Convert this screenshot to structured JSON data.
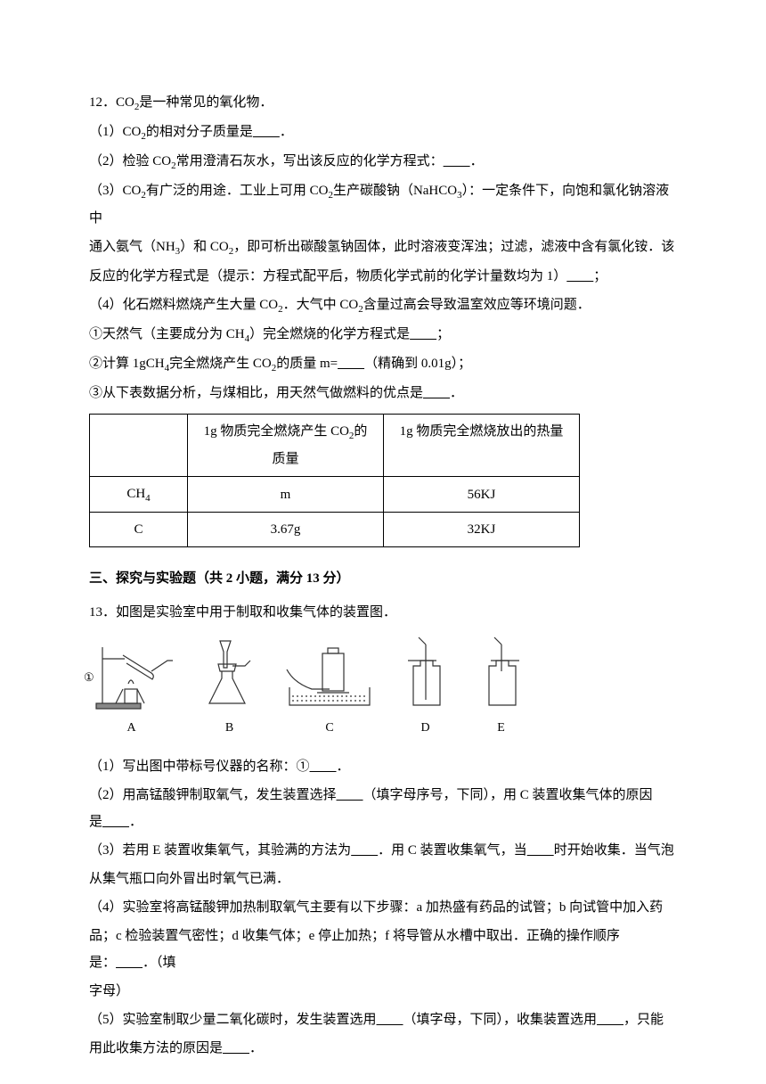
{
  "q12": {
    "num": "12．",
    "intro": "CO₂是一种常见的氧化物．",
    "p1": "（1）CO₂的相对分子质量是____．",
    "p2": "（2）检验 CO₂常用澄清石灰水，写出该反应的化学方程式：____．",
    "p3a": "（3）CO₂有广泛的用途．工业上可用 CO₂生产碳酸钠（NaHCO₃）：一定条件下，向饱和氯化钠溶液中",
    "p3b": "通入氨气（NH₃）和 CO₂，即可析出碳酸氢钠固体，此时溶液变浑浊；过滤，滤液中含有氯化铵．该",
    "p3c": "反应的化学方程式是（提示：方程式配平后，物质化学式前的化学计量数均为 1）____；",
    "p4": "（4）化石燃料燃烧产生大量 CO₂．大气中 CO₂含量过高会导致温室效应等环境问题．",
    "p4_1": "①天然气（主要成分为 CH₄）完全燃烧的化学方程式是____；",
    "p4_2": "②计算 1gCH₄完全燃烧产生 CO₂的质量 m=____（精确到 0.01g）；",
    "p4_3": "③从下表数据分析，与煤相比，用天然气做燃料的优点是____．"
  },
  "table": {
    "col_widths": {
      "c1": 110,
      "c2": 220,
      "c3": 220
    },
    "header": {
      "c1": "",
      "c2_l1": "1g 物质完全燃烧产生 CO₂的",
      "c2_l2": "质量",
      "c3": "1g 物质完全燃烧放出的热量"
    },
    "row1": {
      "c1": "CH₄",
      "c2": "m",
      "c3": "56KJ"
    },
    "row2": {
      "c1": "C",
      "c2": "3.67g",
      "c3": "32KJ"
    }
  },
  "section3": {
    "title": "三、探究与实验题（共 2 小题，满分 13 分）"
  },
  "q13": {
    "num": "13．",
    "intro": "如图是实验室中用于制取和收集气体的装置图．",
    "label1": "①",
    "labelA": "A",
    "labelB": "B",
    "labelC": "C",
    "labelD": "D",
    "labelE": "E",
    "p1": "（1）写出图中带标号仪器的名称：①____．",
    "p2": "（2）用高锰酸钾制取氧气，发生装置选择____（填字母序号，下同），用 C 装置收集气体的原因是____．",
    "p3a": "（3）若用 E 装置收集氧气，其验满的方法为____．用 C 装置收集氧气，当____时开始收集．当气泡",
    "p3b": "从集气瓶口向外冒出时氧气已满．",
    "p4a": "（4）实验室将高锰酸钾加热制取氧气主要有以下步骤：a 加热盛有药品的试管；b 向试管中加入药",
    "p4b": "品；c 检验装置气密性；d 收集气体；e 停止加热；f 将导管从水槽中取出．正确的操作顺序是：____．（填",
    "p4c": "字母）",
    "p5a": "（5）实验室制取少量二氧化碳时，发生装置选用____（填字母，下同），收集装置选用____，只能",
    "p5b": "用此收集方法的原因是____．"
  },
  "colors": {
    "text": "#000000",
    "bg": "#ffffff",
    "stroke": "#333333"
  }
}
